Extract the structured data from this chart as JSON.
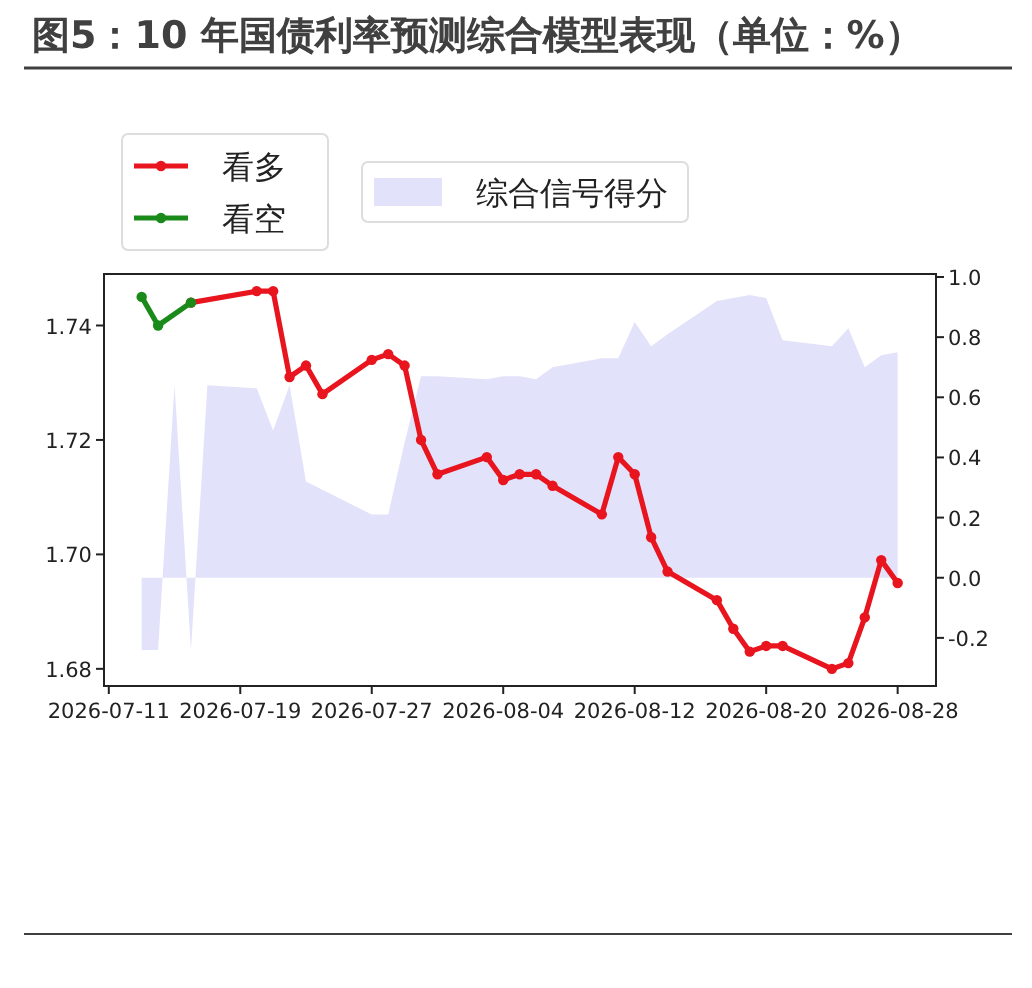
{
  "chart_data": {
    "type": "line",
    "title": "图5：10 年国债利率预测综合模型表现（单位：%）",
    "x": [
      "2026-07-13",
      "2026-07-14",
      "2026-07-16",
      "2026-07-20",
      "2026-07-21",
      "2026-07-22",
      "2026-07-23",
      "2026-07-24",
      "2026-07-27",
      "2026-07-28",
      "2026-07-29",
      "2026-07-30",
      "2026-07-31",
      "2026-08-03",
      "2026-08-04",
      "2026-08-05",
      "2026-08-06",
      "2026-08-07",
      "2026-08-10",
      "2026-08-11",
      "2026-08-12",
      "2026-08-13",
      "2026-08-14",
      "2026-08-17",
      "2026-08-18",
      "2026-08-19",
      "2026-08-20",
      "2026-08-21",
      "2026-08-24",
      "2026-08-25",
      "2026-08-26",
      "2026-08-27",
      "2026-08-28"
    ],
    "series": [
      {
        "name": "综合信号得分",
        "type": "area",
        "marker": "none",
        "axis": "y2",
        "color": "#e2e2fa",
        "x": [
          "2026-07-13",
          "2026-07-14",
          "2026-07-15",
          "2026-07-16",
          "2026-07-17",
          "2026-07-20",
          "2026-07-21",
          "2026-07-22",
          "2026-07-23",
          "2026-07-27",
          "2026-07-28",
          "2026-07-29",
          "2026-07-30",
          "2026-07-31",
          "2026-08-03",
          "2026-08-04",
          "2026-08-05",
          "2026-08-06",
          "2026-08-07",
          "2026-08-10",
          "2026-08-11",
          "2026-08-12",
          "2026-08-13",
          "2026-08-14",
          "2026-08-17",
          "2026-08-18",
          "2026-08-19",
          "2026-08-20",
          "2026-08-21",
          "2026-08-24",
          "2026-08-25",
          "2026-08-26",
          "2026-08-27",
          "2026-08-28"
        ],
        "values": [
          -0.24,
          -0.24,
          0.64,
          -0.24,
          0.64,
          0.63,
          0.49,
          0.64,
          0.32,
          0.21,
          0.21,
          0.45,
          0.67,
          0.67,
          0.66,
          0.67,
          0.67,
          0.66,
          0.7,
          0.73,
          0.73,
          0.85,
          0.77,
          0.81,
          0.92,
          0.93,
          0.94,
          0.93,
          0.79,
          0.77,
          0.83,
          0.7,
          0.74,
          0.75
        ]
      },
      {
        "name": "看多",
        "color": "#e8141e",
        "values": [
          null,
          null,
          1.744,
          1.746,
          1.746,
          1.731,
          1.733,
          1.728,
          1.734,
          1.735,
          1.733,
          1.72,
          1.714,
          1.717,
          1.713,
          1.714,
          1.714,
          1.712,
          1.707,
          1.717,
          1.714,
          1.703,
          1.697,
          1.692,
          1.687,
          1.683,
          1.684,
          1.684,
          1.68,
          1.681,
          1.689,
          1.699,
          1.695
        ]
      },
      {
        "name": "看空",
        "color": "#1a8a1a",
        "values": [
          1.745,
          1.74,
          1.744,
          null,
          null,
          null,
          null,
          null,
          null,
          null,
          null,
          null,
          null,
          null,
          null,
          null,
          null,
          null,
          null,
          null,
          null,
          null,
          null,
          null,
          null,
          null,
          null,
          null,
          null,
          null,
          null,
          null,
          null
        ]
      }
    ],
    "xlim": [
      "2026-07-10T17:00",
      "2026-08-30T08:00"
    ],
    "xticks": [
      "2026-07-11",
      "2026-07-19",
      "2026-07-27",
      "2026-08-04",
      "2026-08-12",
      "2026-08-20",
      "2026-08-28"
    ],
    "ylim": [
      1.677,
      1.749
    ],
    "yticks": [
      {
        "value": 1.68,
        "label": "1.68"
      },
      {
        "value": 1.7,
        "label": "1.70"
      },
      {
        "value": 1.72,
        "label": "1.72"
      },
      {
        "value": 1.74,
        "label": "1.74"
      }
    ],
    "y2lim": [
      -0.36,
      1.01
    ],
    "y2ticks": [
      -0.2,
      {
        "value": 0,
        "label": "0.0"
      },
      0.2,
      0.4,
      0.6,
      0.8,
      {
        "value": 1,
        "label": "1.0"
      }
    ],
    "marker": "circle",
    "line_style": "solid",
    "legend": "top left",
    "grid": false
  }
}
